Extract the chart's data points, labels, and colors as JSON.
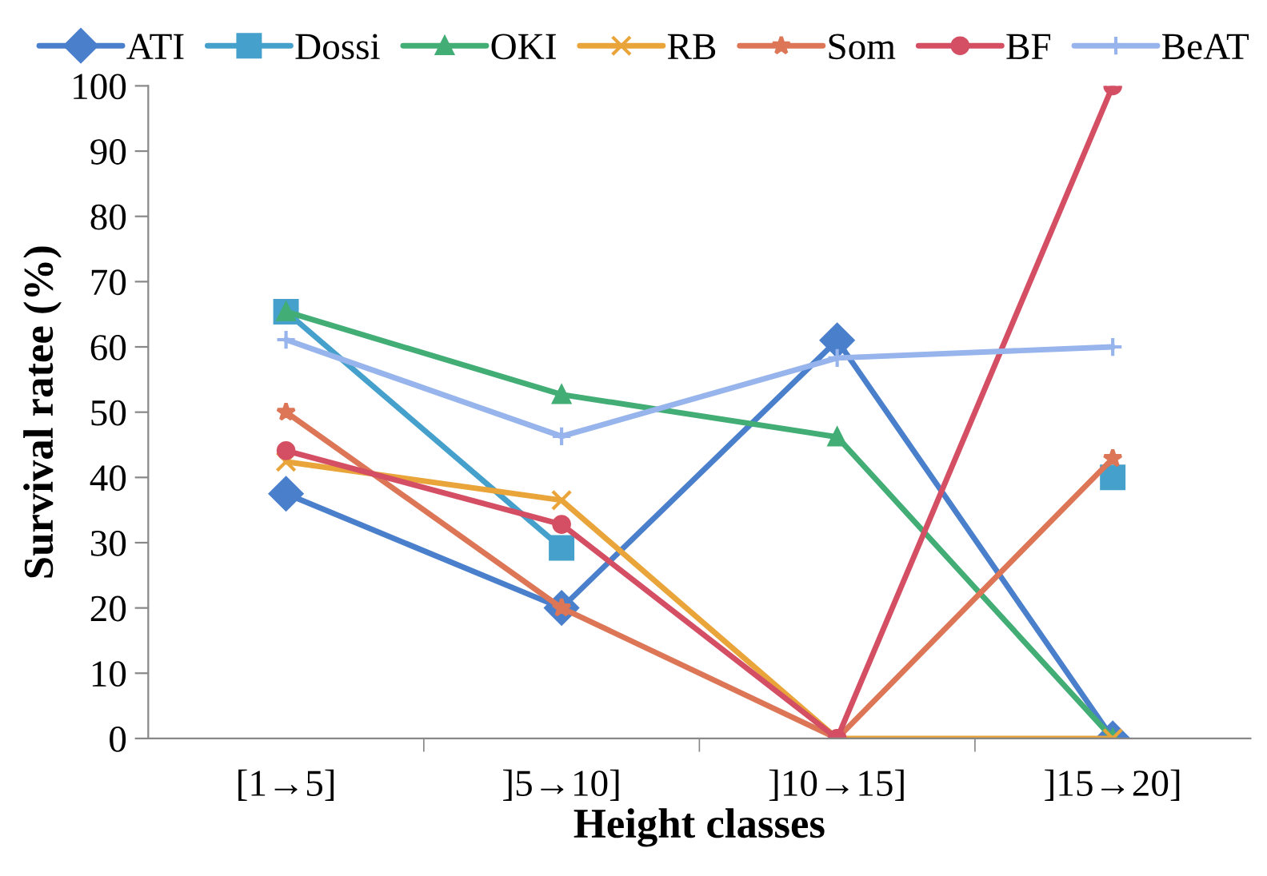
{
  "chart_data": {
    "type": "line",
    "xlabel": "Height classes",
    "ylabel": "Survival ratee (%)",
    "categories": [
      "[1→5]",
      "]5→10]",
      "]10→15]",
      "]15→20]"
    ],
    "ylim": [
      0,
      100
    ],
    "yticks": [
      0,
      10,
      20,
      30,
      40,
      50,
      60,
      70,
      80,
      90,
      100
    ],
    "grid": false,
    "legend": "top",
    "series": [
      {
        "name": "ATI",
        "color": "#4a7fcc",
        "marker": "diamond",
        "values": [
          37.5,
          20,
          61,
          0
        ]
      },
      {
        "name": "Dossi",
        "color": "#45a1cc",
        "marker": "square",
        "values": [
          65.4,
          29.2,
          null,
          40
        ]
      },
      {
        "name": "OKI",
        "color": "#43ad76",
        "marker": "triangle",
        "values": [
          65.4,
          52.7,
          46.2,
          0
        ]
      },
      {
        "name": "RB",
        "color": "#e9a43a",
        "marker": "cross",
        "values": [
          42.4,
          36.5,
          0,
          0
        ]
      },
      {
        "name": "Som",
        "color": "#dc7656",
        "marker": "star",
        "values": [
          50,
          20,
          0,
          42.9
        ]
      },
      {
        "name": "BF",
        "color": "#d44f63",
        "marker": "circle",
        "values": [
          44.1,
          32.8,
          0,
          100
        ]
      },
      {
        "name": "BeAT",
        "color": "#97b4ec",
        "marker": "plus",
        "values": [
          61.1,
          46.3,
          58.3,
          60
        ]
      }
    ]
  }
}
